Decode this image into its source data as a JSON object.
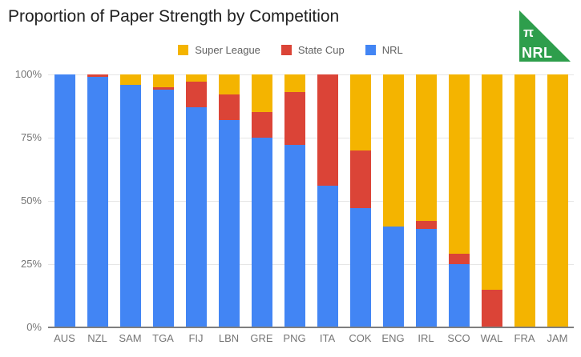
{
  "page": {
    "title": "Proportion of Paper Strength by Competition"
  },
  "logo": {
    "pi": "π",
    "text": "NRL",
    "color": "#2E9E4C",
    "text_color": "#FFFFFF"
  },
  "colors": {
    "super_league": "#F4B400",
    "state_cup": "#DB4437",
    "nrl": "#4285F4",
    "grid": "#E6E6E6",
    "baseline": "#7F7F7F",
    "axis_text": "#757575",
    "legend_text": "#616161",
    "title_text": "#212121",
    "background": "#FFFFFF"
  },
  "chart_data": {
    "type": "bar",
    "subtype": "stacked-100-percent",
    "title": "Proportion of Paper Strength by Competition",
    "xlabel": "",
    "ylabel": "",
    "ylim": [
      0,
      100
    ],
    "grid": true,
    "legend_position": "top-center",
    "categories": [
      "AUS",
      "NZL",
      "SAM",
      "TGA",
      "FIJ",
      "LBN",
      "GRE",
      "PNG",
      "ITA",
      "COK",
      "ENG",
      "IRL",
      "SCO",
      "WAL",
      "FRA",
      "JAM"
    ],
    "stack_order_top_to_bottom": [
      "Super League",
      "State Cup",
      "NRL"
    ],
    "series": [
      {
        "name": "Super League",
        "color": "#F4B400",
        "values": [
          0,
          0,
          4,
          5,
          3,
          8,
          15,
          7,
          0,
          30,
          60,
          58,
          71,
          85,
          100,
          100
        ]
      },
      {
        "name": "State Cup",
        "color": "#DB4437",
        "values": [
          0,
          1,
          0,
          1,
          10,
          10,
          10,
          21,
          44,
          23,
          0,
          3,
          4,
          15,
          0,
          0
        ]
      },
      {
        "name": "NRL",
        "color": "#4285F4",
        "values": [
          100,
          99,
          96,
          94,
          87,
          82,
          75,
          72,
          56,
          47,
          40,
          39,
          25,
          0,
          0,
          0
        ]
      }
    ],
    "y_ticks": [
      {
        "label": "100%",
        "value": 100
      },
      {
        "label": "75%",
        "value": 75
      },
      {
        "label": "50%",
        "value": 50
      },
      {
        "label": "25%",
        "value": 25
      },
      {
        "label": "0%",
        "value": 0
      }
    ]
  }
}
